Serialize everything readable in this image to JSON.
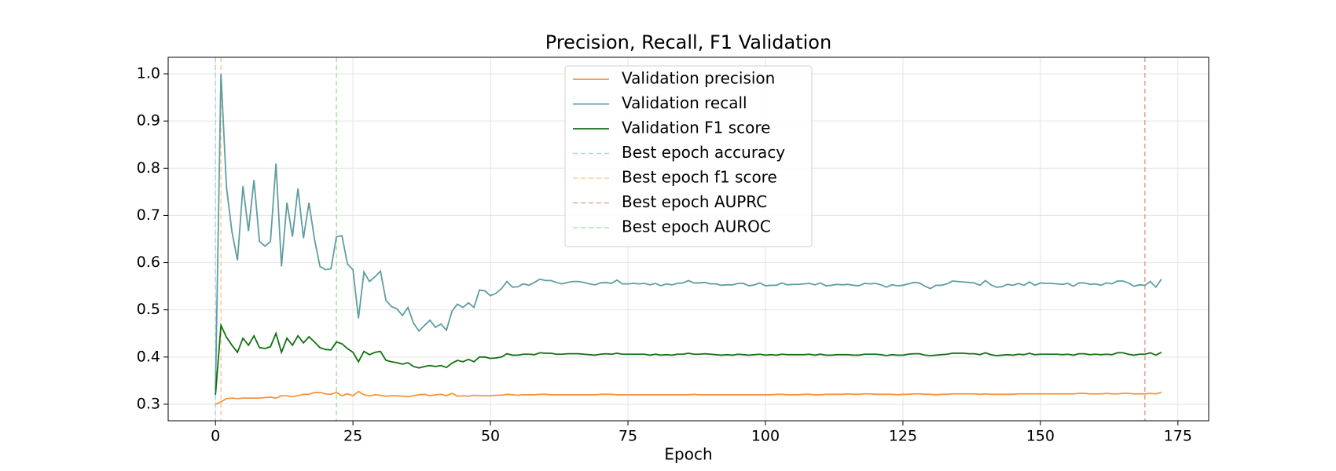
{
  "chart_data": {
    "type": "line",
    "title": "Precision, Recall, F1 Validation",
    "x_label": "Epoch",
    "x": [
      0,
      1,
      2,
      3,
      4,
      5,
      6,
      7,
      8,
      9,
      10,
      11,
      12,
      13,
      14,
      15,
      16,
      17,
      18,
      19,
      20,
      21,
      22,
      23,
      24,
      25,
      26,
      27,
      28,
      29,
      30,
      31,
      32,
      33,
      34,
      35,
      36,
      37,
      38,
      39,
      40,
      41,
      42,
      43,
      44,
      45,
      46,
      47,
      48,
      49,
      50,
      51,
      52,
      53,
      54,
      55,
      56,
      57,
      58,
      59,
      60,
      61,
      62,
      63,
      64,
      65,
      66,
      67,
      68,
      69,
      70,
      71,
      72,
      73,
      74,
      75,
      76,
      77,
      78,
      79,
      80,
      81,
      82,
      83,
      84,
      85,
      86,
      87,
      88,
      89,
      90,
      91,
      92,
      93,
      94,
      95,
      96,
      97,
      98,
      99,
      100,
      101,
      102,
      103,
      104,
      105,
      106,
      107,
      108,
      109,
      110,
      111,
      112,
      113,
      114,
      115,
      116,
      117,
      118,
      119,
      120,
      121,
      122,
      123,
      124,
      125,
      126,
      127,
      128,
      129,
      130,
      131,
      132,
      133,
      134,
      135,
      136,
      137,
      138,
      139,
      140,
      141,
      142,
      143,
      144,
      145,
      146,
      147,
      148,
      149,
      150,
      151,
      152,
      153,
      154,
      155,
      156,
      157,
      158,
      159,
      160,
      161,
      162,
      163,
      164,
      165,
      166,
      167,
      168,
      169,
      170,
      171,
      172
    ],
    "series": [
      {
        "name": "Validation precision",
        "color": "#f5953d",
        "values": [
          0.3,
          0.305,
          0.312,
          0.313,
          0.312,
          0.313,
          0.313,
          0.313,
          0.313,
          0.314,
          0.315,
          0.313,
          0.318,
          0.318,
          0.316,
          0.318,
          0.321,
          0.321,
          0.325,
          0.325,
          0.322,
          0.321,
          0.325,
          0.318,
          0.322,
          0.318,
          0.327,
          0.32,
          0.318,
          0.32,
          0.319,
          0.317,
          0.318,
          0.318,
          0.317,
          0.316,
          0.318,
          0.32,
          0.321,
          0.318,
          0.32,
          0.321,
          0.318,
          0.323,
          0.317,
          0.318,
          0.317,
          0.319,
          0.318,
          0.318,
          0.318,
          0.319,
          0.319,
          0.321,
          0.32,
          0.319,
          0.32,
          0.32,
          0.32,
          0.321,
          0.321,
          0.32,
          0.32,
          0.32,
          0.32,
          0.32,
          0.32,
          0.32,
          0.32,
          0.32,
          0.321,
          0.321,
          0.321,
          0.32,
          0.32,
          0.32,
          0.32,
          0.32,
          0.32,
          0.32,
          0.32,
          0.32,
          0.32,
          0.32,
          0.32,
          0.32,
          0.32,
          0.321,
          0.32,
          0.32,
          0.32,
          0.32,
          0.32,
          0.32,
          0.32,
          0.32,
          0.32,
          0.32,
          0.32,
          0.32,
          0.32,
          0.32,
          0.321,
          0.321,
          0.32,
          0.32,
          0.32,
          0.321,
          0.321,
          0.32,
          0.32,
          0.321,
          0.321,
          0.321,
          0.321,
          0.322,
          0.321,
          0.321,
          0.322,
          0.322,
          0.321,
          0.321,
          0.321,
          0.321,
          0.32,
          0.321,
          0.321,
          0.322,
          0.322,
          0.321,
          0.321,
          0.32,
          0.321,
          0.321,
          0.322,
          0.322,
          0.322,
          0.322,
          0.322,
          0.321,
          0.322,
          0.321,
          0.321,
          0.321,
          0.321,
          0.321,
          0.322,
          0.322,
          0.322,
          0.322,
          0.322,
          0.322,
          0.322,
          0.322,
          0.322,
          0.322,
          0.322,
          0.323,
          0.323,
          0.322,
          0.322,
          0.322,
          0.323,
          0.322,
          0.322,
          0.323,
          0.323,
          0.322,
          0.322,
          0.322,
          0.323,
          0.322,
          0.325
        ]
      },
      {
        "name": "Validation recall",
        "color": "#5f9ea0",
        "values": [
          0.33,
          1.0,
          0.76,
          0.665,
          0.605,
          0.762,
          0.667,
          0.775,
          0.645,
          0.635,
          0.645,
          0.81,
          0.592,
          0.727,
          0.655,
          0.757,
          0.652,
          0.727,
          0.65,
          0.592,
          0.585,
          0.587,
          0.655,
          0.657,
          0.597,
          0.585,
          0.482,
          0.58,
          0.56,
          0.57,
          0.582,
          0.52,
          0.507,
          0.502,
          0.488,
          0.505,
          0.472,
          0.455,
          0.467,
          0.478,
          0.463,
          0.47,
          0.457,
          0.497,
          0.512,
          0.505,
          0.515,
          0.505,
          0.542,
          0.54,
          0.53,
          0.535,
          0.545,
          0.56,
          0.548,
          0.549,
          0.555,
          0.552,
          0.558,
          0.565,
          0.562,
          0.562,
          0.558,
          0.555,
          0.558,
          0.56,
          0.56,
          0.558,
          0.555,
          0.553,
          0.557,
          0.558,
          0.556,
          0.563,
          0.555,
          0.555,
          0.556,
          0.555,
          0.556,
          0.553,
          0.556,
          0.551,
          0.555,
          0.553,
          0.556,
          0.557,
          0.562,
          0.557,
          0.557,
          0.558,
          0.555,
          0.555,
          0.552,
          0.553,
          0.553,
          0.556,
          0.556,
          0.551,
          0.553,
          0.557,
          0.551,
          0.552,
          0.552,
          0.557,
          0.553,
          0.554,
          0.554,
          0.555,
          0.556,
          0.553,
          0.557,
          0.551,
          0.552,
          0.554,
          0.553,
          0.554,
          0.552,
          0.551,
          0.556,
          0.555,
          0.556,
          0.553,
          0.548,
          0.553,
          0.551,
          0.552,
          0.555,
          0.558,
          0.557,
          0.55,
          0.545,
          0.552,
          0.552,
          0.555,
          0.561,
          0.56,
          0.559,
          0.558,
          0.557,
          0.552,
          0.562,
          0.553,
          0.548,
          0.549,
          0.554,
          0.552,
          0.556,
          0.552,
          0.559,
          0.552,
          0.557,
          0.556,
          0.556,
          0.555,
          0.554,
          0.556,
          0.55,
          0.557,
          0.557,
          0.554,
          0.555,
          0.552,
          0.557,
          0.555,
          0.561,
          0.561,
          0.557,
          0.55,
          0.553,
          0.552,
          0.56,
          0.548,
          0.565
        ]
      },
      {
        "name": "Validation F1 score",
        "color": "#137013",
        "values": [
          0.32,
          0.467,
          0.442,
          0.425,
          0.41,
          0.44,
          0.425,
          0.445,
          0.42,
          0.418,
          0.422,
          0.45,
          0.41,
          0.44,
          0.425,
          0.445,
          0.43,
          0.443,
          0.432,
          0.42,
          0.416,
          0.415,
          0.432,
          0.428,
          0.418,
          0.41,
          0.39,
          0.412,
          0.405,
          0.41,
          0.412,
          0.393,
          0.39,
          0.388,
          0.385,
          0.388,
          0.38,
          0.377,
          0.38,
          0.382,
          0.38,
          0.382,
          0.378,
          0.387,
          0.393,
          0.39,
          0.395,
          0.39,
          0.4,
          0.4,
          0.397,
          0.398,
          0.4,
          0.407,
          0.404,
          0.404,
          0.406,
          0.406,
          0.405,
          0.409,
          0.408,
          0.408,
          0.406,
          0.406,
          0.407,
          0.407,
          0.407,
          0.406,
          0.405,
          0.404,
          0.406,
          0.407,
          0.406,
          0.408,
          0.406,
          0.406,
          0.406,
          0.406,
          0.406,
          0.404,
          0.406,
          0.404,
          0.405,
          0.404,
          0.406,
          0.406,
          0.408,
          0.406,
          0.406,
          0.407,
          0.406,
          0.405,
          0.404,
          0.405,
          0.404,
          0.406,
          0.405,
          0.404,
          0.405,
          0.406,
          0.404,
          0.405,
          0.404,
          0.406,
          0.405,
          0.405,
          0.405,
          0.405,
          0.406,
          0.404,
          0.406,
          0.404,
          0.404,
          0.405,
          0.405,
          0.405,
          0.404,
          0.404,
          0.406,
          0.406,
          0.406,
          0.405,
          0.403,
          0.405,
          0.404,
          0.404,
          0.406,
          0.407,
          0.407,
          0.404,
          0.403,
          0.404,
          0.405,
          0.406,
          0.408,
          0.408,
          0.408,
          0.407,
          0.407,
          0.405,
          0.409,
          0.405,
          0.403,
          0.404,
          0.405,
          0.404,
          0.406,
          0.405,
          0.408,
          0.405,
          0.406,
          0.406,
          0.406,
          0.406,
          0.405,
          0.406,
          0.404,
          0.407,
          0.407,
          0.405,
          0.406,
          0.405,
          0.406,
          0.405,
          0.409,
          0.409,
          0.406,
          0.404,
          0.406,
          0.406,
          0.409,
          0.404,
          0.41
        ]
      }
    ],
    "vlines": [
      {
        "name": "Best epoch accuracy",
        "x": 0,
        "color": "#add8e6"
      },
      {
        "name": "Best epoch f1 score",
        "x": 1,
        "color": "#ffcc99"
      },
      {
        "name": "Best epoch AUPRC",
        "x": 169,
        "color": "#e9a58f"
      },
      {
        "name": "Best epoch AUROC",
        "x": 22,
        "color": "#a6e8a0"
      }
    ],
    "xlim": [
      -8.6,
      180.6
    ],
    "xticks": [
      0,
      25,
      50,
      75,
      100,
      125,
      150,
      175
    ],
    "ylim": [
      0.265,
      1.035
    ],
    "yticks": [
      0.3,
      0.4,
      0.5,
      0.6,
      0.7,
      0.8,
      0.9,
      {
        "value": 1,
        "label": "1.0"
      }
    ],
    "grid": true,
    "legend": "upper center"
  }
}
